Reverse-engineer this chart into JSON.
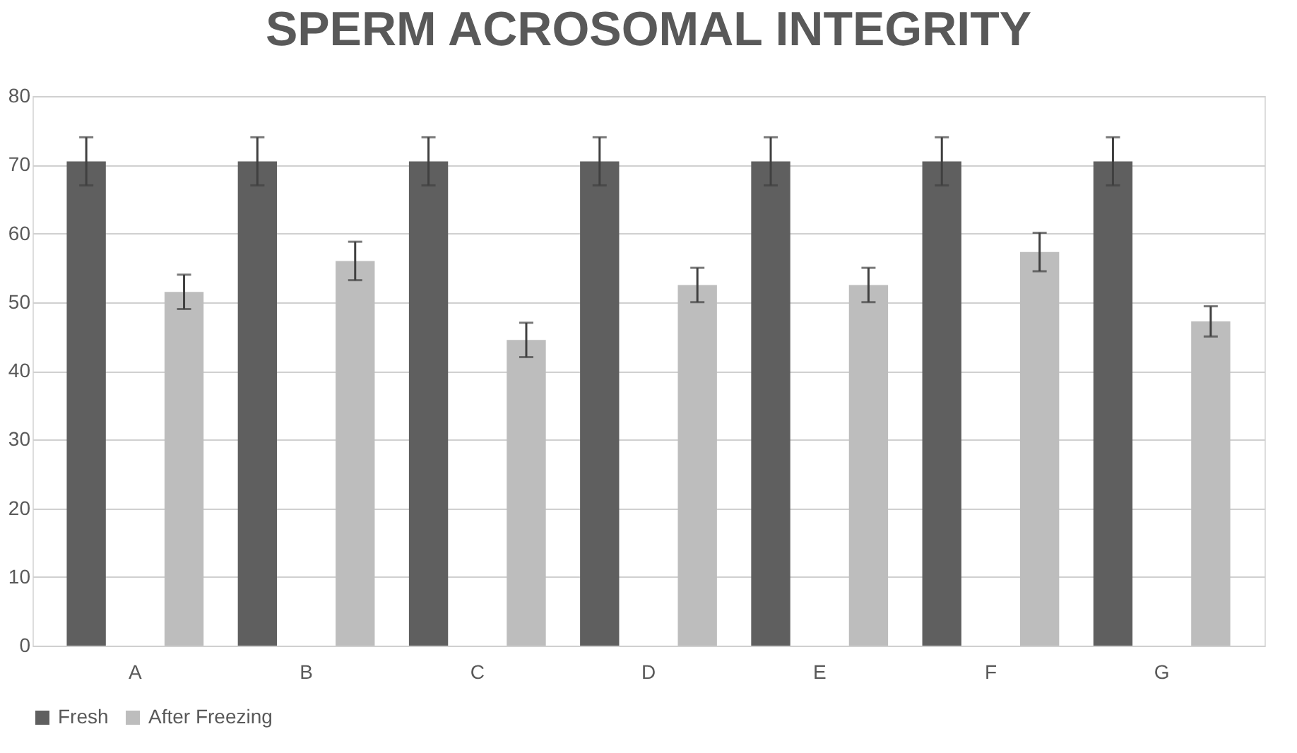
{
  "chart_data": {
    "type": "bar",
    "title": "SPERM ACROSOMAL INTEGRITY",
    "categories": [
      "A",
      "B",
      "C",
      "D",
      "E",
      "F",
      "G"
    ],
    "series": [
      {
        "name": "Fresh",
        "color": "#5f5f5f",
        "values": [
          70.5,
          70.5,
          70.5,
          70.5,
          70.5,
          70.5,
          70.5
        ],
        "errors": [
          3.5,
          3.5,
          3.5,
          3.5,
          3.5,
          3.5,
          3.5
        ]
      },
      {
        "name": "After Freezing",
        "color": "#bdbdbd",
        "values": [
          51.5,
          56,
          44.5,
          52.5,
          52.5,
          57.3,
          47.2
        ],
        "errors": [
          2.5,
          2.8,
          2.5,
          2.5,
          2.5,
          2.8,
          2.2
        ]
      }
    ],
    "ylim": [
      0,
      80
    ],
    "yticks": [
      0,
      10,
      20,
      30,
      40,
      50,
      60,
      70,
      80
    ],
    "grid": "y",
    "legend": "bottom"
  }
}
